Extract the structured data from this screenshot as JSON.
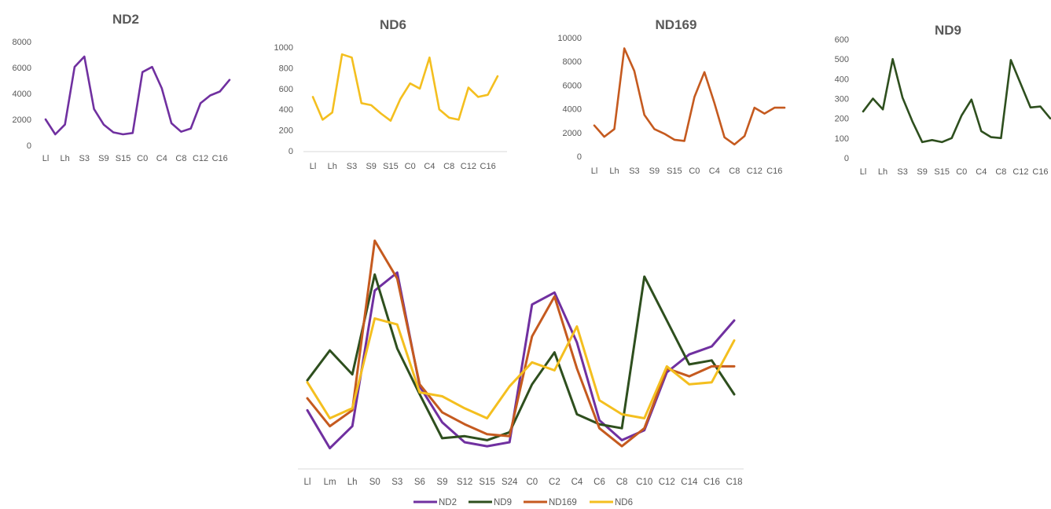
{
  "colors": {
    "ND2": "#7030a0",
    "ND6": "#f4bf1f",
    "ND169": "#c55a1f",
    "ND9": "#2e4f1e"
  },
  "chart_data": [
    {
      "type": "line",
      "title": "ND2",
      "ylim": [
        0,
        8000
      ],
      "yticks": [
        "0",
        "2000",
        "4000",
        "6000",
        "8000"
      ],
      "x_tick_labels": [
        "Ll",
        "Lh",
        "S3",
        "S9",
        "S15",
        "C0",
        "C4",
        "C8",
        "C12",
        "C16"
      ],
      "series": [
        {
          "name": "ND2",
          "color_key": "ND2",
          "values": [
            2000,
            850,
            1600,
            6050,
            6850,
            2800,
            1600,
            1000,
            850,
            950,
            5650,
            6050,
            4400,
            1700,
            1050,
            1300,
            3250,
            3850,
            4150,
            5050
          ]
        }
      ]
    },
    {
      "type": "line",
      "title": "ND6",
      "ylim": [
        0,
        1000
      ],
      "yticks": [
        "0",
        "200",
        "400",
        "600",
        "800",
        "1000"
      ],
      "x_tick_labels": [
        "Ll",
        "Lh",
        "S3",
        "S9",
        "S15",
        "C0",
        "C4",
        "C8",
        "C12",
        "C16"
      ],
      "series": [
        {
          "name": "ND6",
          "color_key": "ND6",
          "values": [
            520,
            300,
            370,
            930,
            900,
            460,
            440,
            360,
            290,
            500,
            650,
            600,
            900,
            400,
            320,
            300,
            610,
            520,
            540,
            720
          ]
        }
      ]
    },
    {
      "type": "line",
      "title": "ND169",
      "ylim": [
        0,
        10000
      ],
      "yticks": [
        "0",
        "2000",
        "4000",
        "6000",
        "8000",
        "10000"
      ],
      "x_tick_labels": [
        "Ll",
        "Lh",
        "S3",
        "S9",
        "S15",
        "C0",
        "C4",
        "C8",
        "C12",
        "C16"
      ],
      "series": [
        {
          "name": "ND169",
          "color_key": "ND169",
          "values": [
            2600,
            1650,
            2300,
            9100,
            7200,
            3500,
            2300,
            1900,
            1400,
            1300,
            5000,
            7100,
            4500,
            1600,
            1000,
            1700,
            4100,
            3600,
            4100,
            4100
          ]
        }
      ]
    },
    {
      "type": "line",
      "title": "ND9",
      "ylim": [
        0,
        600
      ],
      "yticks": [
        "0",
        "100",
        "200",
        "300",
        "400",
        "500",
        "600"
      ],
      "x_tick_labels": [
        "Ll",
        "Lh",
        "S3",
        "S9",
        "S15",
        "C0",
        "C4",
        "C8",
        "C12",
        "C16"
      ],
      "series": [
        {
          "name": "ND9",
          "color_key": "ND9",
          "values": [
            235,
            300,
            245,
            500,
            305,
            185,
            80,
            90,
            80,
            100,
            215,
            295,
            135,
            105,
            100,
            495,
            375,
            255,
            260,
            200
          ]
        }
      ]
    },
    {
      "type": "line",
      "title": "",
      "ylim": [
        0,
        1
      ],
      "x_tick_labels": [
        "Ll",
        "Lm",
        "Lh",
        "S0",
        "S3",
        "S6",
        "S9",
        "S12",
        "S15",
        "S24",
        "C0",
        "C2",
        "C4",
        "C6",
        "C8",
        "C10",
        "C12",
        "C14",
        "C16",
        "C18"
      ],
      "legend": "bottom",
      "series": [
        {
          "name": "ND2",
          "color_key": "ND2",
          "values": [
            0.29,
            0.1,
            0.21,
            0.89,
            0.98,
            0.41,
            0.23,
            0.13,
            0.11,
            0.13,
            0.82,
            0.88,
            0.63,
            0.24,
            0.14,
            0.19,
            0.48,
            0.57,
            0.61,
            0.74
          ]
        },
        {
          "name": "ND9",
          "color_key": "ND9",
          "values": [
            0.44,
            0.59,
            0.47,
            0.97,
            0.6,
            0.37,
            0.15,
            0.16,
            0.14,
            0.18,
            0.42,
            0.58,
            0.27,
            0.22,
            0.2,
            0.96,
            0.74,
            0.52,
            0.54,
            0.37
          ]
        },
        {
          "name": "ND169",
          "color_key": "ND169",
          "values": [
            0.35,
            0.21,
            0.29,
            1.14,
            0.95,
            0.42,
            0.28,
            0.22,
            0.17,
            0.16,
            0.66,
            0.86,
            0.5,
            0.2,
            0.11,
            0.2,
            0.5,
            0.46,
            0.51,
            0.51
          ]
        },
        {
          "name": "ND6",
          "color_key": "ND6",
          "values": [
            0.43,
            0.25,
            0.3,
            0.75,
            0.72,
            0.38,
            0.36,
            0.3,
            0.25,
            0.41,
            0.53,
            0.49,
            0.71,
            0.34,
            0.27,
            0.25,
            0.51,
            0.42,
            0.43,
            0.64
          ]
        }
      ]
    }
  ]
}
